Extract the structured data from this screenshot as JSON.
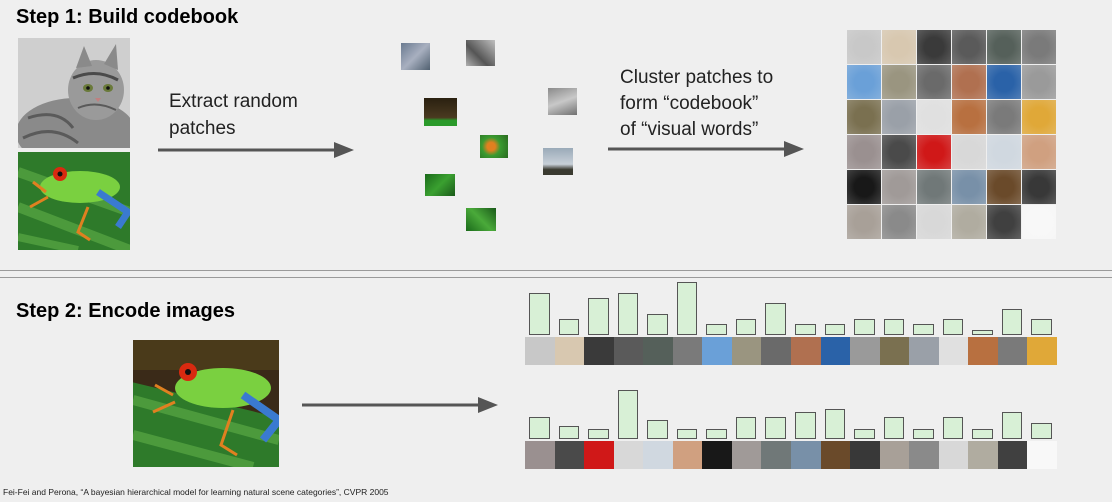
{
  "step1": {
    "title": "Step 1: Build codebook",
    "extract_label_line1": "Extract random",
    "extract_label_line2": "patches",
    "cluster_label_line1": "Cluster patches to",
    "cluster_label_line2": "form “codebook”",
    "cluster_label_line3": "of “visual words”"
  },
  "step2": {
    "title": "Step 2: Encode images"
  },
  "citation": "Fei-Fei and Perona, “A bayesian hierarchical model for learning natural scene categories”, CVPR 2005",
  "colors": {
    "arrow": "#555555",
    "hist_fill": "#d8f0d6",
    "hist_stroke": "#555555"
  },
  "codebook": [
    [
      "#c8c8c8",
      "#d8c8b0",
      "#3a3a3a",
      "#5a5a5a",
      "#55605a",
      "#7a7a7a"
    ],
    [
      "#6aa0d8",
      "#9a9580",
      "#6a6a6a",
      "#b07050",
      "#2a62a8",
      "#9a9a9a"
    ],
    [
      "#7a7050",
      "#9aa0a8",
      "#e0e0e0",
      "#b87040",
      "#7a7a7a",
      "#e0a838"
    ],
    [
      "#9a9090",
      "#4a4a4a",
      "#d01818",
      "#d8d8d8",
      "#d0d8e0",
      "#d0a080"
    ],
    [
      "#181818",
      "#a09a98",
      "#707878",
      "#7890a8",
      "#6a4a2a",
      "#383838"
    ],
    [
      "#a8a098",
      "#8a8a8a",
      "#d8d8d8",
      "#b0aca0",
      "#404040",
      "#f8f8f8"
    ]
  ],
  "histograms": [
    {
      "values": [
        8,
        3,
        7,
        8,
        4,
        10,
        2,
        3,
        6,
        2,
        2,
        3,
        3,
        2,
        3,
        1,
        5,
        3
      ],
      "swatches": [
        "#c8c8c8",
        "#d8c8b0",
        "#3a3a3a",
        "#5a5a5a",
        "#55605a",
        "#7a7a7a",
        "#6aa0d8",
        "#9a9580",
        "#6a6a6a",
        "#b07050",
        "#2a62a8",
        "#9a9a9a",
        "#7a7050",
        "#9aa0a8",
        "#e0e0e0",
        "#b87040",
        "#7a7a7a",
        "#e0a838"
      ]
    },
    {
      "values": [
        4,
        2.5,
        1.8,
        9,
        3.5,
        1.8,
        1.8,
        4,
        4,
        5,
        5.5,
        1.8,
        4,
        1.8,
        4,
        1.8,
        5,
        3
      ],
      "swatches": [
        "#9a9090",
        "#4a4a4a",
        "#d01818",
        "#d8d8d8",
        "#d0d8e0",
        "#d0a080",
        "#181818",
        "#a09a98",
        "#707878",
        "#7890a8",
        "#6a4a2a",
        "#383838",
        "#a8a098",
        "#8a8a8a",
        "#d8d8d8",
        "#b0aca0",
        "#404040",
        "#f8f8f8"
      ]
    }
  ]
}
